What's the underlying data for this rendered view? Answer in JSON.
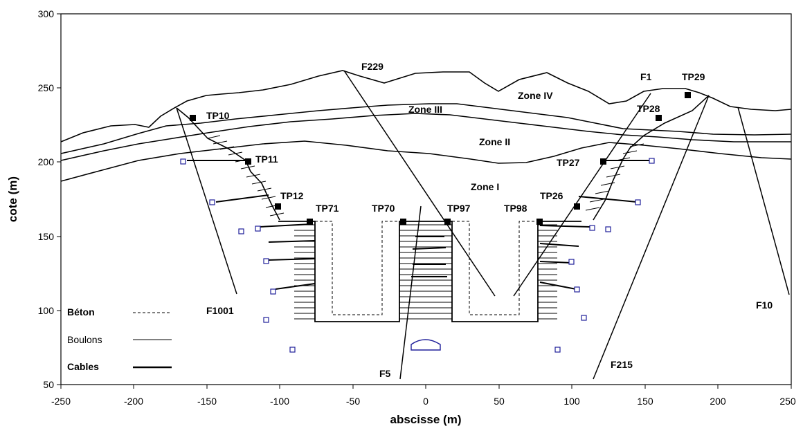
{
  "axes": {
    "x_title": "abscisse (m)",
    "y_title": "cote (m)",
    "x_ticks": [
      "-250",
      "-200",
      "-150",
      "-100",
      "-50",
      "0",
      "50",
      "100",
      "150",
      "200",
      "250"
    ],
    "y_ticks": [
      "50",
      "100",
      "150",
      "200",
      "250",
      "300"
    ]
  },
  "zones": [
    "Zone IV",
    "Zone III",
    "Zone II",
    "Zone I"
  ],
  "faults": [
    "F229",
    "F1",
    "F1001",
    "F5",
    "F215",
    "F10"
  ],
  "points": [
    "TP10",
    "TP11",
    "TP12",
    "TP71",
    "TP70",
    "TP97",
    "TP98",
    "TP26",
    "TP27",
    "TP28",
    "TP29"
  ],
  "legend": {
    "beton": "Béton",
    "boulons": "Boulons",
    "cables": "Cables"
  },
  "colors": {
    "line": "#000000",
    "marker": "#1f1f9a"
  }
}
